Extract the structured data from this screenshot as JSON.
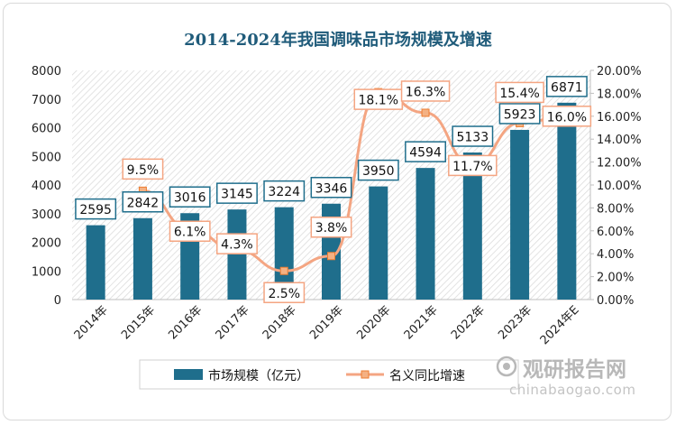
{
  "chart_data": {
    "type": "bar+line",
    "title": "2014-2024年我国调味品市场规模及增速",
    "categories": [
      "2014年",
      "2015年",
      "2016年",
      "2017年",
      "2018年",
      "2019年",
      "2020年",
      "2021年",
      "2022年",
      "2023年",
      "2024年E"
    ],
    "series": [
      {
        "name": "市场规模（亿元）",
        "type": "bar",
        "axis": "left",
        "color": "#1f6e8c",
        "values": [
          2595,
          2842,
          3016,
          3145,
          3224,
          3346,
          3950,
          4594,
          5133,
          5923,
          6871
        ],
        "labels": [
          "2595",
          "2842",
          "3016",
          "3145",
          "3224",
          "3346",
          "3950",
          "4594",
          "5133",
          "5923",
          "6871"
        ]
      },
      {
        "name": "名义同比增速",
        "type": "line",
        "axis": "right",
        "color": "#f4a582",
        "values": [
          null,
          9.5,
          6.1,
          4.3,
          2.5,
          3.8,
          18.1,
          16.3,
          11.7,
          15.4,
          16.0
        ],
        "labels": [
          "",
          "9.5%",
          "6.1%",
          "4.3%",
          "2.5%",
          "3.8%",
          "18.1%",
          "16.3%",
          "11.7%",
          "15.4%",
          "16.0%"
        ]
      }
    ],
    "y_left": {
      "min": 0,
      "max": 8000,
      "ticks": [
        "0",
        "1000",
        "2000",
        "3000",
        "4000",
        "5000",
        "6000",
        "7000",
        "8000"
      ]
    },
    "y_right": {
      "min": 0,
      "max": 20,
      "ticks": [
        "0.00%",
        "2.00%",
        "4.00%",
        "6.00%",
        "8.00%",
        "10.00%",
        "12.00%",
        "14.00%",
        "16.00%",
        "18.00%",
        "20.00%"
      ]
    },
    "legend": {
      "placement": "bottom"
    },
    "grid": false
  },
  "watermark": {
    "brand": "观研报告网",
    "url": "chinabaogao.com"
  }
}
